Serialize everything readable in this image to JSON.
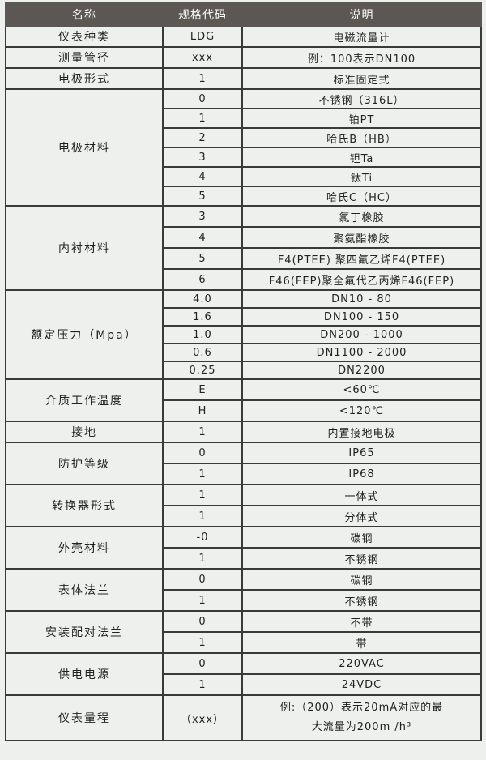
{
  "headers": [
    "名称",
    "规格代码",
    "说明"
  ],
  "groups": [
    {
      "name": "仪表种类",
      "rows": [
        [
          "LDG",
          "电磁流量计"
        ]
      ]
    },
    {
      "name": "测量管径",
      "rows": [
        [
          "xxx",
          "例：100表示DN100"
        ]
      ]
    },
    {
      "name": "电极形式",
      "rows": [
        [
          "1",
          "标准固定式"
        ]
      ]
    },
    {
      "name": "电极材料",
      "rows": [
        [
          "0",
          "不锈钢（316L）"
        ],
        [
          "1",
          "铂PT"
        ],
        [
          "2",
          "哈氏B（HB）"
        ],
        [
          "3",
          "钽Ta"
        ],
        [
          "4",
          "钛Ti"
        ],
        [
          "5",
          "哈氏C（HC）"
        ]
      ]
    },
    {
      "name": "内衬材料",
      "rows": [
        [
          "3",
          "氯丁橡胶"
        ],
        [
          "4",
          "聚氨酯橡胶"
        ],
        [
          "5",
          "F4(PTEE) 聚四氟乙烯F4(PTEE)"
        ],
        [
          "6",
          "F46(FEP)聚全氟代乙丙烯F46(FEP)"
        ]
      ]
    },
    {
      "name": "额定压力（Mpa）",
      "rows": [
        [
          "4.0",
          "DN10 - 80"
        ],
        [
          "1.6",
          "DN100 - 150"
        ],
        [
          "1.0",
          "DN200 - 1000"
        ],
        [
          "0.6",
          "DN1100 - 2000"
        ],
        [
          "0.25",
          "DN2200"
        ]
      ]
    },
    {
      "name": "介质工作温度",
      "rows": [
        [
          "E",
          "<60℃"
        ],
        [
          "H",
          "<120℃"
        ]
      ]
    },
    {
      "name": "接地",
      "rows": [
        [
          "1",
          "内置接地电极"
        ]
      ]
    },
    {
      "name": "防护等级",
      "rows": [
        [
          "0",
          "IP65"
        ],
        [
          "1",
          "IP68"
        ]
      ]
    },
    {
      "name": "转换器形式",
      "rows": [
        [
          "1",
          "一体式"
        ],
        [
          "1",
          "分体式"
        ]
      ]
    },
    {
      "name": "外壳材料",
      "rows": [
        [
          "-0",
          "碳钢"
        ],
        [
          "1",
          "不锈钢"
        ]
      ]
    },
    {
      "name": "表体法兰",
      "rows": [
        [
          "0",
          "碳钢"
        ],
        [
          "1",
          "不锈钢"
        ]
      ]
    },
    {
      "name": "安装配对法兰",
      "rows": [
        [
          "0",
          "不带"
        ],
        [
          "1",
          "带"
        ]
      ]
    },
    {
      "name": "供电电源",
      "rows": [
        [
          "0",
          "220VAC"
        ],
        [
          "1",
          "24VDC"
        ]
      ]
    },
    {
      "name": "仪表量程",
      "rows": [
        [
          "（xxx）",
          "例:（200）表示20mA对应的最大流量为200m /h³"
        ]
      ]
    }
  ]
}
